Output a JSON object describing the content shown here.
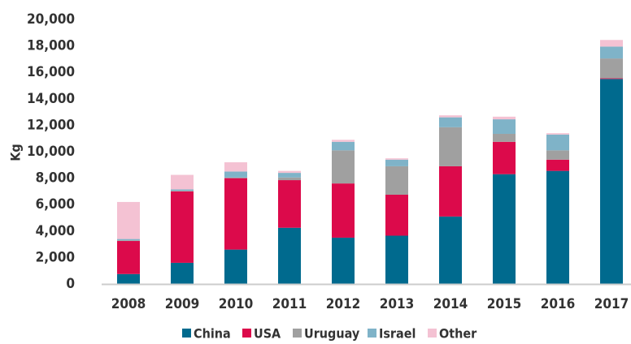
{
  "chart_data": {
    "type": "stacked_bar",
    "y_label": "Kg",
    "categories": [
      "2008",
      "2009",
      "2010",
      "2011",
      "2012",
      "2013",
      "2014",
      "2015",
      "2016",
      "2017"
    ],
    "series": [
      {
        "name": "China",
        "color": "#006a8e",
        "values": [
          750,
          1600,
          2600,
          4250,
          3500,
          3650,
          5100,
          8300,
          8550,
          15500
        ]
      },
      {
        "name": "USA",
        "color": "#dc0a4b",
        "values": [
          2500,
          5400,
          5400,
          3600,
          4100,
          3100,
          3800,
          2450,
          850,
          50
        ]
      },
      {
        "name": "Uruguay",
        "color": "#a0a0a0",
        "values": [
          50,
          50,
          50,
          200,
          2500,
          2150,
          2950,
          600,
          700,
          1500
        ]
      },
      {
        "name": "Israel",
        "color": "#7fb3c8",
        "values": [
          100,
          100,
          450,
          350,
          650,
          500,
          750,
          1100,
          1200,
          900
        ]
      },
      {
        "name": "Other",
        "color": "#f4c2d3",
        "values": [
          2800,
          1100,
          700,
          150,
          150,
          100,
          150,
          200,
          100,
          500
        ]
      }
    ],
    "ylim": [
      0,
      20000
    ],
    "yticks": [
      0,
      {
        "value": 2000,
        "label": "2,000"
      },
      {
        "value": 4000,
        "label": "4,000"
      },
      {
        "value": 6000,
        "label": "6,000"
      },
      {
        "value": 8000,
        "label": "8,000"
      },
      {
        "value": 10000,
        "label": "10,000"
      },
      {
        "value": 12000,
        "label": "12,000"
      },
      {
        "value": 14000,
        "label": "14,000"
      },
      {
        "value": 16000,
        "label": "16,000"
      },
      {
        "value": 18000,
        "label": "18,000"
      },
      {
        "value": 20000,
        "label": "20,000"
      }
    ],
    "grid": false,
    "legend": "bottom"
  }
}
